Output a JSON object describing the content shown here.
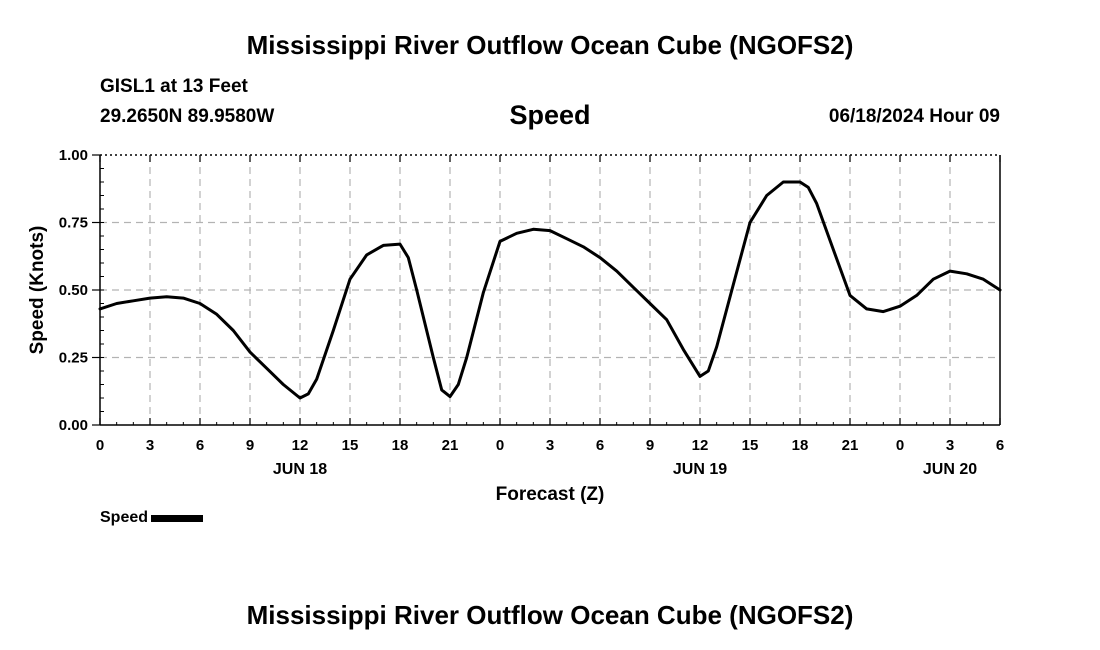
{
  "header": {
    "main_title": "Mississippi River Outflow Ocean Cube (NGOFS2)",
    "station": "GISL1 at 13 Feet",
    "coords": "29.2650N  89.9580W",
    "datetime": "06/18/2024 Hour 09"
  },
  "legend": {
    "label": "Speed",
    "color": "#000000"
  },
  "footer": {
    "title": "Mississippi River Outflow Ocean Cube (NGOFS2)"
  },
  "chart_data": {
    "type": "line",
    "title": "Speed",
    "xlabel": "Forecast (Z)",
    "ylabel": "Speed (Knots)",
    "xlim": [
      0,
      54
    ],
    "ylim": [
      0,
      1
    ],
    "grid": true,
    "x_ticks": [
      0,
      3,
      6,
      9,
      12,
      15,
      18,
      21,
      24,
      27,
      30,
      33,
      36,
      39,
      42,
      45,
      48,
      51,
      54
    ],
    "x_tick_labels": [
      "0",
      "3",
      "6",
      "9",
      "12",
      "15",
      "18",
      "21",
      "0",
      "3",
      "6",
      "9",
      "12",
      "15",
      "18",
      "21",
      "0",
      "3",
      "6"
    ],
    "y_ticks": [
      0,
      0.25,
      0.5,
      0.75,
      1.0
    ],
    "y_tick_labels": [
      "0.00",
      "0.25",
      "0.50",
      "0.75",
      "1.00"
    ],
    "date_labels": [
      {
        "x": 12,
        "label": "JUN 18"
      },
      {
        "x": 36,
        "label": "JUN 19"
      },
      {
        "x": 51,
        "label": "JUN 20"
      }
    ],
    "series": [
      {
        "name": "Speed",
        "x": [
          0,
          1,
          2,
          3,
          4,
          5,
          6,
          7,
          8,
          9,
          10,
          11,
          12,
          12.5,
          13,
          14,
          15,
          16,
          17,
          18,
          18.5,
          19,
          20,
          20.5,
          21,
          21.5,
          22,
          23,
          24,
          25,
          26,
          27,
          28,
          29,
          30,
          31,
          32,
          33,
          34,
          35,
          36,
          36.5,
          37,
          38,
          39,
          40,
          41,
          42,
          42.5,
          43,
          44,
          45,
          46,
          47,
          48,
          49,
          50,
          51,
          52,
          53,
          54
        ],
        "values": [
          0.43,
          0.45,
          0.46,
          0.47,
          0.475,
          0.47,
          0.45,
          0.41,
          0.35,
          0.27,
          0.21,
          0.15,
          0.1,
          0.115,
          0.17,
          0.35,
          0.54,
          0.63,
          0.665,
          0.67,
          0.62,
          0.5,
          0.25,
          0.13,
          0.105,
          0.15,
          0.25,
          0.49,
          0.68,
          0.71,
          0.725,
          0.72,
          0.69,
          0.66,
          0.62,
          0.57,
          0.51,
          0.45,
          0.39,
          0.28,
          0.18,
          0.2,
          0.29,
          0.52,
          0.75,
          0.85,
          0.9,
          0.9,
          0.88,
          0.82,
          0.65,
          0.48,
          0.43,
          0.42,
          0.44,
          0.48,
          0.54,
          0.57,
          0.56,
          0.54,
          0.5
        ]
      }
    ]
  }
}
